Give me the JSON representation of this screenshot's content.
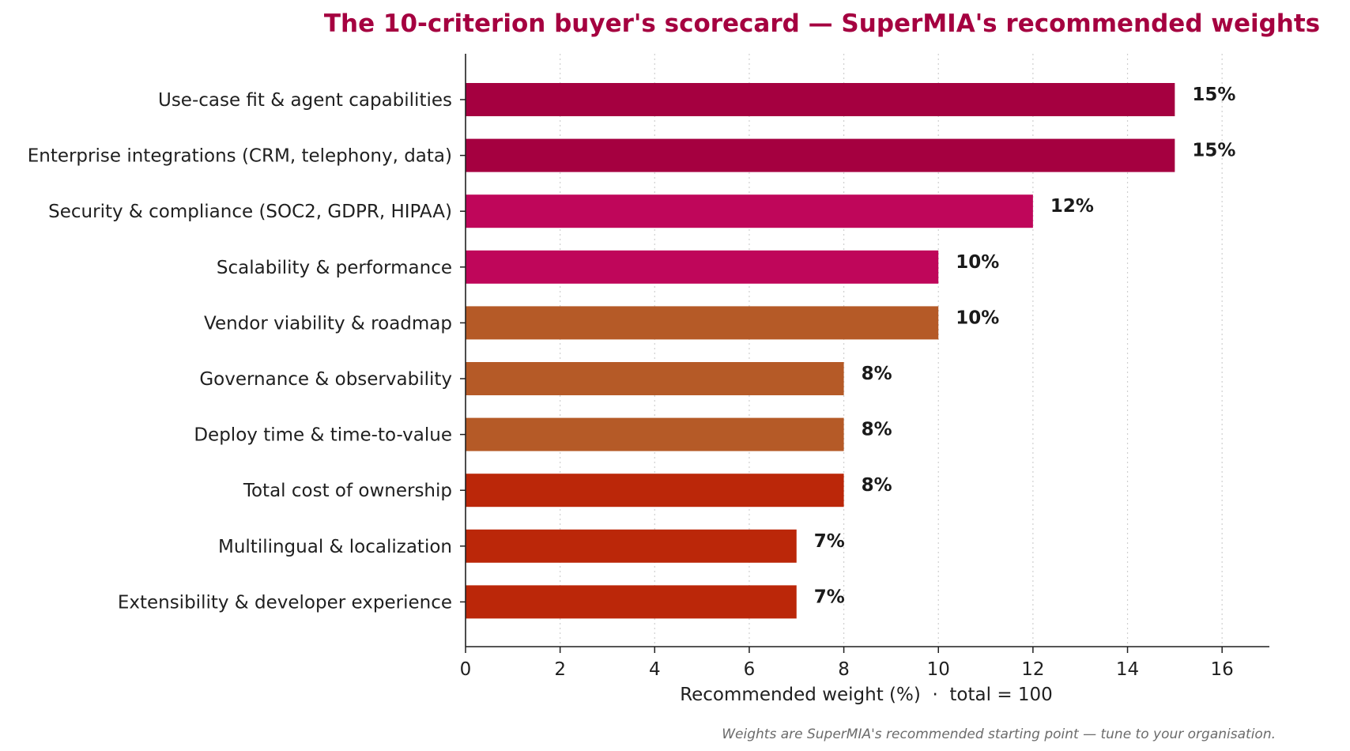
{
  "chart_data": {
    "type": "bar",
    "orientation": "horizontal",
    "title": "The 10-criterion buyer's scorecard — SuperMIA's recommended weights",
    "xlabel": "Recommended weight (%)  ·  total = 100",
    "ylabel": "",
    "footnote": "Weights are SuperMIA's recommended starting point — tune to your organisation.",
    "xlim": [
      0,
      17
    ],
    "xticks": [
      0,
      2,
      4,
      6,
      8,
      10,
      12,
      14,
      16
    ],
    "grid": "vertical dotted",
    "categories": [
      "Use-case fit & agent capabilities",
      "Enterprise integrations (CRM, telephony, data)",
      "Security & compliance (SOC2, GDPR, HIPAA)",
      "Scalability & performance",
      "Vendor viability & roadmap",
      "Governance & observability",
      "Deploy time & time-to-value",
      "Total cost of ownership",
      "Multilingual & localization",
      "Extensibility & developer experience"
    ],
    "values": [
      15,
      15,
      12,
      10,
      10,
      8,
      8,
      8,
      7,
      7
    ],
    "value_labels": [
      "15%",
      "15%",
      "12%",
      "10%",
      "10%",
      "8%",
      "8%",
      "8%",
      "7%",
      "7%"
    ],
    "colors": [
      "#a50040",
      "#a50040",
      "#bf065a",
      "#bf065a",
      "#b55a27",
      "#b55a27",
      "#b55a27",
      "#bb2709",
      "#bb2709",
      "#bb2709"
    ],
    "title_color": "#a50040"
  }
}
